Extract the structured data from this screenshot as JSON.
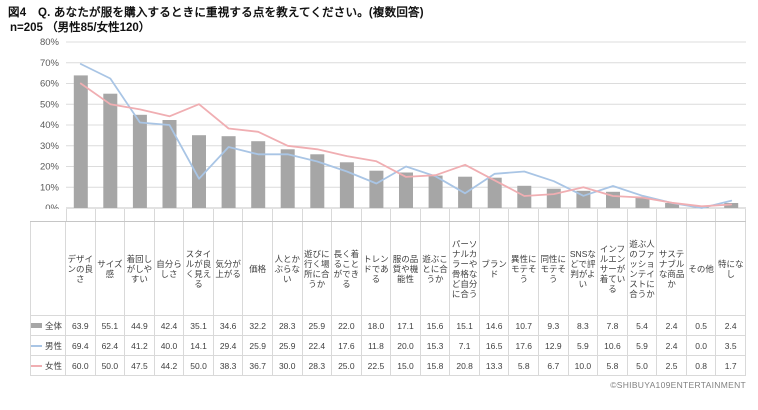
{
  "header": {
    "title_line1": "図4　Q. あなたが服を購入するときに重視する点を教えてください。(複数回答)",
    "title_line2": "n=205 （男性85/女性120）"
  },
  "footer": {
    "copyright": "©SHIBUYA109ENTERTAINMENT"
  },
  "colors": {
    "bar_gray": "#a6a6a6",
    "line_blue": "#a9c5e5",
    "line_pink": "#f0aeb2",
    "grid": "#dcdcdc",
    "axis": "#c6c6c6",
    "tick_label": "#595959"
  },
  "chart_data": {
    "type": "bar",
    "title": "あなたが服を購入するときに重視する点",
    "xlabel": "",
    "ylabel": "",
    "ylim": [
      0,
      80
    ],
    "ytick_step": 10,
    "ytick_suffix": "%",
    "grid": true,
    "legend_position": "table-left",
    "categories": [
      "デザインの良さ",
      "サイズ感",
      "着回しがしやすい",
      "自分らしさ",
      "スタイルが良く見える",
      "気分が上がる",
      "価格",
      "人とかぶらない",
      "遊びに行く場所に合うか",
      "長く着ることができる",
      "トレンドである",
      "服の品質や機能性",
      "遊ぶことに合うか",
      "パーソナルカラーや骨格など自分に合う",
      "ブランド",
      "異性にモテそう",
      "同性にモテそう",
      "SNSなどで評判がよい",
      "インフルエンサーが着ている",
      "遊ぶ人のファッションテイストに合うか",
      "サステナブルな商品か",
      "その他",
      "特になし"
    ],
    "series": [
      {
        "name": "全体",
        "render": "bar",
        "color": "#a6a6a6",
        "values": [
          63.9,
          55.1,
          44.9,
          42.4,
          35.1,
          34.6,
          32.2,
          28.3,
          25.9,
          22.0,
          18.0,
          17.1,
          15.6,
          15.1,
          14.6,
          10.7,
          9.3,
          8.3,
          7.8,
          5.4,
          2.4,
          0.5,
          2.4
        ]
      },
      {
        "name": "男性",
        "render": "line",
        "color": "#a9c5e5",
        "values": [
          69.4,
          62.4,
          41.2,
          40.0,
          14.1,
          29.4,
          25.9,
          25.9,
          22.4,
          17.6,
          11.8,
          20.0,
          15.3,
          7.1,
          16.5,
          17.6,
          12.9,
          5.9,
          10.6,
          5.9,
          2.4,
          0.0,
          3.5
        ]
      },
      {
        "name": "女性",
        "render": "line",
        "color": "#f0aeb2",
        "values": [
          60.0,
          50.0,
          47.5,
          44.2,
          50.0,
          38.3,
          36.7,
          30.0,
          28.3,
          25.0,
          22.5,
          15.0,
          15.8,
          20.8,
          13.3,
          5.8,
          6.7,
          10.0,
          5.8,
          5.0,
          2.5,
          0.8,
          1.7
        ]
      }
    ]
  }
}
